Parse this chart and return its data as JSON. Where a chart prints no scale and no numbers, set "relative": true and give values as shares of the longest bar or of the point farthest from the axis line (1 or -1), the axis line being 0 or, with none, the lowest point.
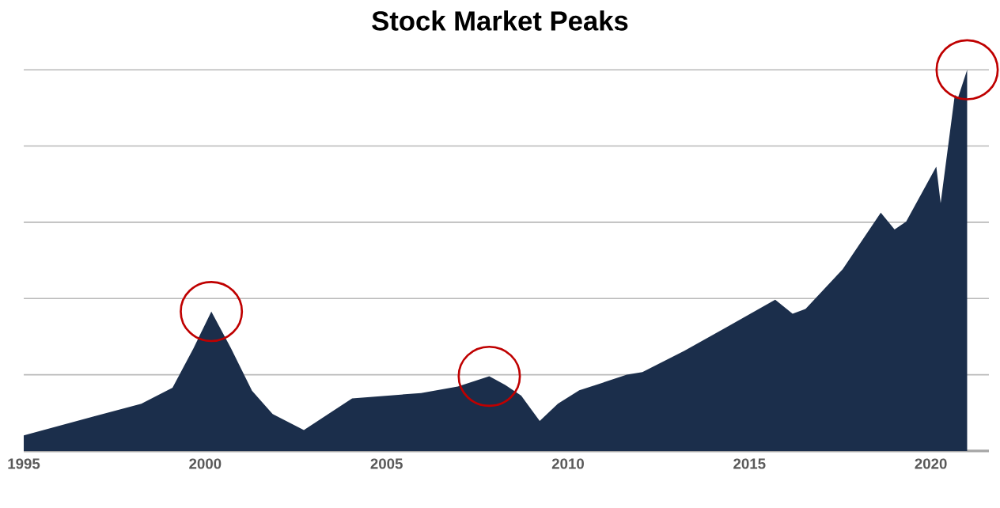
{
  "chart_data": {
    "type": "area",
    "title": "Stock Market Peaks",
    "relative": true,
    "grid": "y",
    "xlim": [
      1995,
      2021.6
    ],
    "xticks": [
      1995,
      2000,
      2005,
      2010,
      2015,
      2020
    ],
    "series": [
      {
        "color": "#1b2e4b",
        "x": [
          1995.0,
          1996.93,
          1998.24,
          1999.1,
          1999.68,
          2000.17,
          2000.71,
          2001.29,
          2001.86,
          2002.72,
          2004.05,
          2005.95,
          2006.96,
          2007.83,
          2008.27,
          2008.71,
          2009.22,
          2009.72,
          2010.31,
          2011.62,
          2012.05,
          2013.21,
          2014.37,
          2015.71,
          2016.19,
          2016.55,
          2017.57,
          2018.62,
          2019.0,
          2019.32,
          2020.15,
          2020.27,
          2020.66,
          2020.75,
          2021.0
        ],
        "values": [
          0.041,
          0.091,
          0.124,
          0.166,
          0.27,
          0.366,
          0.27,
          0.158,
          0.097,
          0.055,
          0.138,
          0.152,
          0.169,
          0.196,
          0.173,
          0.145,
          0.079,
          0.124,
          0.159,
          0.2,
          0.207,
          0.263,
          0.325,
          0.397,
          0.36,
          0.373,
          0.477,
          0.625,
          0.581,
          0.602,
          0.746,
          0.65,
          0.934,
          0.927,
          1.0
        ]
      }
    ]
  }
}
